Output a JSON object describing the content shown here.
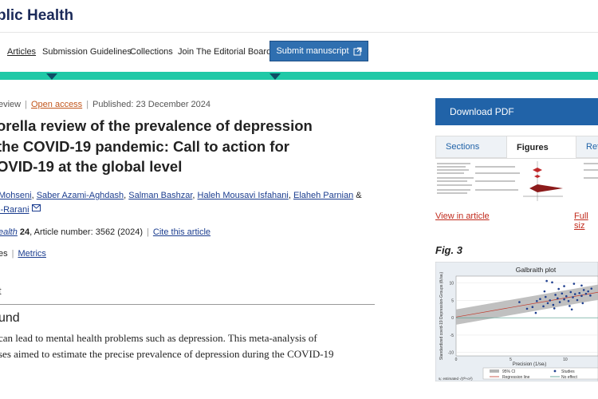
{
  "journal": {
    "title": "blic Health"
  },
  "nav": {
    "items": [
      "Articles",
      "Submission Guidelines",
      "Collections",
      "Join The Editorial Board"
    ],
    "submit_label": "Submit manuscript"
  },
  "meta": {
    "type_fragment": "eview",
    "open_access": "Open access",
    "published": "Published: 23 December 2024"
  },
  "title_lines": [
    "orella review of the prevalence of depression",
    "the COVID-19 pandemic: Call to action for",
    "OVID-19 at the global level"
  ],
  "authors": {
    "line1": [
      "Mohseni",
      "Saber Azami-Aghdash",
      "Salman Bashzar",
      "Haleh Mousavi Isfahani",
      "Elaheh Parnian"
    ],
    "amp": "&",
    "line2": "i-Rarani"
  },
  "citation": {
    "journal_frag": "ealth",
    "volume": "24",
    "article": ", Article number: 3562 (2024)",
    "cite": "Cite this article"
  },
  "metrics_row": {
    "accesses_frag": "es",
    "metrics": "Metrics"
  },
  "section_tick": "t",
  "subheading": "und",
  "abstract_lines": [
    "can lead to mental health problems such as depression. This meta-analysis of",
    "ses aimed to estimate the precise prevalence of depression during the COVID-19"
  ],
  "sidebar": {
    "download_label": "Download PDF",
    "tabs": [
      "Sections",
      "Figures",
      "Refe"
    ],
    "view_in_article": "View in article",
    "full_size": "Full siz",
    "fig_label": "Fig. 3"
  },
  "chart_data": {
    "type": "scatter",
    "title": "Galbraith plot",
    "xlabel": "Precision (1/seᵢ)",
    "ylabel": "Standardized covid-19 Depression-Groups (θᵢ/seᵢ)",
    "x_ticks": [
      "0",
      "5",
      "10"
    ],
    "y_ticks": [
      "10",
      "5",
      "0",
      "-5",
      "-10"
    ],
    "xlim": [
      0,
      13
    ],
    "ylim": [
      -11,
      12
    ],
    "points": [
      [
        5.8,
        4.5
      ],
      [
        6.5,
        2.6
      ],
      [
        7.0,
        3.1
      ],
      [
        7.4,
        4.8
      ],
      [
        7.7,
        5.4
      ],
      [
        8.0,
        3.3
      ],
      [
        8.2,
        6.0
      ],
      [
        8.4,
        4.2
      ],
      [
        8.6,
        5.0
      ],
      [
        8.9,
        3.7
      ],
      [
        9.1,
        6.6
      ],
      [
        9.3,
        5.6
      ],
      [
        9.5,
        4.5
      ],
      [
        9.7,
        7.0
      ],
      [
        9.9,
        5.3
      ],
      [
        10.1,
        6.2
      ],
      [
        10.3,
        4.8
      ],
      [
        10.5,
        7.4
      ],
      [
        10.7,
        5.9
      ],
      [
        10.9,
        6.8
      ],
      [
        11.1,
        5.1
      ],
      [
        11.3,
        7.1
      ],
      [
        11.5,
        6.3
      ],
      [
        11.7,
        8.0
      ],
      [
        11.9,
        6.9
      ],
      [
        12.1,
        7.6
      ],
      [
        12.3,
        6.4
      ],
      [
        8.3,
        10.6
      ],
      [
        8.8,
        10.2
      ],
      [
        9.9,
        9.1
      ],
      [
        10.8,
        9.8
      ],
      [
        11.5,
        9.3
      ],
      [
        7.3,
        1.4
      ],
      [
        9.0,
        2.7
      ],
      [
        10.4,
        3.4
      ],
      [
        11.6,
        4.2
      ],
      [
        12.4,
        8.4
      ],
      [
        8.1,
        7.6
      ],
      [
        9.4,
        8.3
      ],
      [
        10.6,
        2.4
      ]
    ],
    "regression": {
      "intercept": 0.2,
      "slope": 0.55
    },
    "ci_halfwidth": 2.2,
    "legend": [
      "95% CI",
      "Studies",
      "Regression line",
      "No effect"
    ],
    "footnote": "sᵢ: estimated √(τ̂²+σᵢ²)"
  }
}
